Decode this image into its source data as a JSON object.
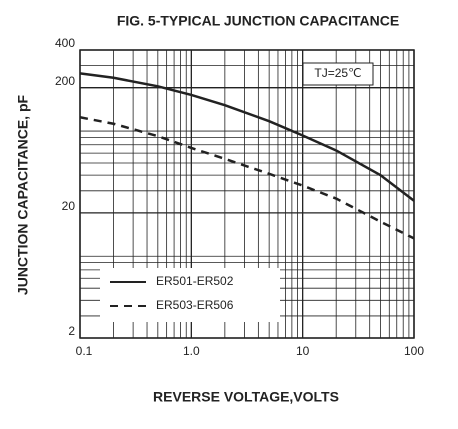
{
  "chart_data": {
    "type": "line",
    "title": "FIG. 5-TYPICAL JUNCTION CAPACITANCE",
    "x_label": "REVERSE VOLTAGE,VOLTS",
    "y_label": "JUNCTION CAPACITANCE, pF",
    "annotation": "TJ=25℃",
    "x": [
      0.1,
      0.2,
      0.5,
      1,
      2,
      5,
      10,
      20,
      50,
      100
    ],
    "series": [
      {
        "name": "ER501-ER502",
        "color": "#222222",
        "style": "solid",
        "values": [
          260,
          240,
          205,
          175,
          145,
          108,
          83,
          63,
          40,
          25
        ]
      },
      {
        "name": "ER503-ER506",
        "color": "#222222",
        "style": "dashed",
        "values": [
          116,
          103,
          82,
          66,
          54,
          41,
          33,
          26,
          17,
          12.5
        ]
      }
    ],
    "xlim": [
      0.1,
      100
    ],
    "ylim": [
      2,
      400
    ],
    "xticks": [
      {
        "value": 0.1,
        "label": "0.1"
      },
      {
        "value": 1,
        "label": "1.0"
      },
      10,
      100
    ],
    "yticks": [
      2,
      20,
      200,
      400
    ],
    "log_x": true,
    "log_y": true,
    "grid": true,
    "legend": "lower left"
  }
}
